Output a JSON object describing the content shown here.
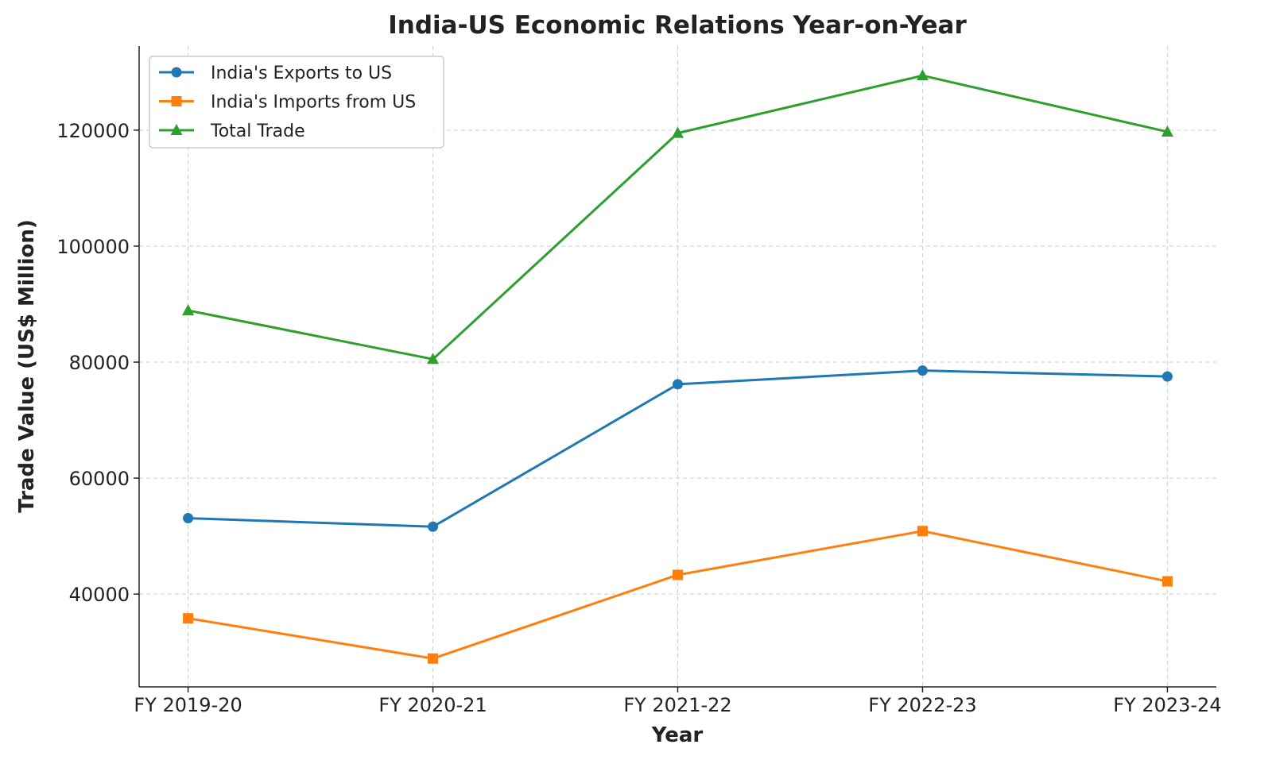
{
  "chart_data": {
    "type": "line",
    "title": "India-US Economic Relations Year-on-Year",
    "xlabel": "Year",
    "ylabel": "Trade Value (US$ Million)",
    "categories": [
      "FY 2019-20",
      "FY 2020-21",
      "FY 2021-22",
      "FY 2022-23",
      "FY 2023-24"
    ],
    "ylim": [
      24000,
      134500
    ],
    "yticks": [
      40000,
      60000,
      80000,
      100000,
      120000
    ],
    "ytick_labels": [
      "40000",
      "60000",
      "80000",
      "100000",
      "120000"
    ],
    "grid": true,
    "legend_position": "top-left",
    "series": [
      {
        "name": "India's Exports to US",
        "color": "#1f77b4",
        "marker": "circle",
        "values": [
          53089,
          51620,
          76180,
          78540,
          77520
        ]
      },
      {
        "name": "India's Imports from US",
        "color": "#ff7f0e",
        "marker": "square",
        "values": [
          35820,
          28890,
          43310,
          50870,
          42200
        ]
      },
      {
        "name": "Total Trade",
        "color": "#2ca02c",
        "marker": "triangle",
        "values": [
          88909,
          80510,
          119490,
          129410,
          119720
        ]
      }
    ]
  }
}
